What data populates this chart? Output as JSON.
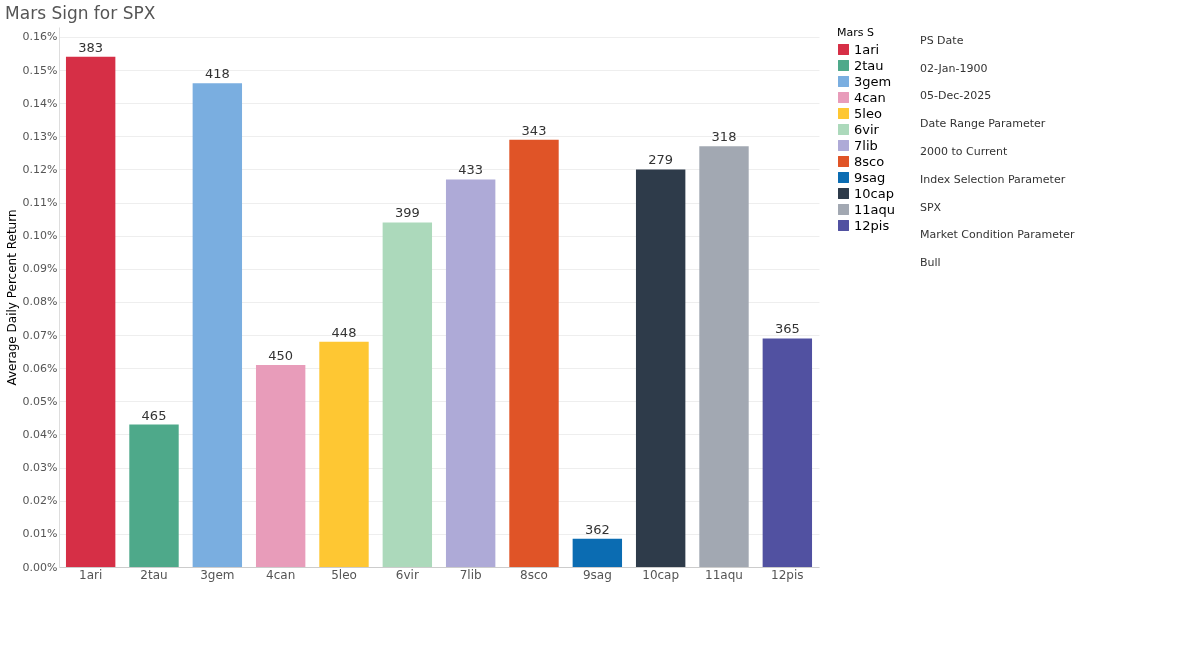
{
  "chart_data": {
    "type": "bar",
    "title": "Mars Sign for SPX",
    "ylabel": "Average Daily Percent Return",
    "legend_title": "Mars S",
    "legend": "right",
    "categories": [
      "1ari",
      "2tau",
      "3gem",
      "4can",
      "5leo",
      "6vir",
      "7lib",
      "8sco",
      "9sag",
      "10cap",
      "11aqu",
      "12pis"
    ],
    "series": [
      {
        "name": "1ari",
        "color": "#d62f46",
        "values": [
          0.154,
          null,
          null,
          null,
          null,
          null,
          null,
          null,
          null,
          null,
          null,
          null
        ]
      },
      {
        "name": "2tau",
        "color": "#4ea98a",
        "values": [
          null,
          0.043,
          null,
          null,
          null,
          null,
          null,
          null,
          null,
          null,
          null,
          null
        ]
      },
      {
        "name": "3gem",
        "color": "#7aaee0",
        "values": [
          null,
          null,
          0.146,
          null,
          null,
          null,
          null,
          null,
          null,
          null,
          null,
          null
        ]
      },
      {
        "name": "4can",
        "color": "#e89cba",
        "values": [
          null,
          null,
          null,
          0.061,
          null,
          null,
          null,
          null,
          null,
          null,
          null,
          null
        ]
      },
      {
        "name": "5leo",
        "color": "#fec733",
        "values": [
          null,
          null,
          null,
          null,
          0.068,
          null,
          null,
          null,
          null,
          null,
          null,
          null
        ]
      },
      {
        "name": "6vir",
        "color": "#acd9bb",
        "values": [
          null,
          null,
          null,
          null,
          null,
          0.104,
          null,
          null,
          null,
          null,
          null,
          null
        ]
      },
      {
        "name": "7lib",
        "color": "#aeaad7",
        "values": [
          null,
          null,
          null,
          null,
          null,
          null,
          0.117,
          null,
          null,
          null,
          null,
          null
        ]
      },
      {
        "name": "8sco",
        "color": "#e05427",
        "values": [
          null,
          null,
          null,
          null,
          null,
          null,
          null,
          0.129,
          null,
          null,
          null,
          null
        ]
      },
      {
        "name": "9sag",
        "color": "#0b6cb2",
        "values": [
          null,
          null,
          null,
          null,
          null,
          null,
          null,
          null,
          0.0085,
          null,
          null,
          null
        ]
      },
      {
        "name": "10cap",
        "color": "#2e3b4a",
        "values": [
          null,
          null,
          null,
          null,
          null,
          null,
          null,
          null,
          null,
          0.12,
          null,
          null
        ]
      },
      {
        "name": "11aqu",
        "color": "#a2a8b2",
        "values": [
          null,
          null,
          null,
          null,
          null,
          null,
          null,
          null,
          null,
          null,
          0.127,
          null
        ]
      },
      {
        "name": "12pis",
        "color": "#5151a1",
        "values": [
          null,
          null,
          null,
          null,
          null,
          null,
          null,
          null,
          null,
          null,
          null,
          0.069
        ]
      }
    ],
    "ylim": [
      0,
      0.163
    ],
    "yticks": [
      {
        "value": 0,
        "label": "0.00%"
      },
      {
        "value": 0.01,
        "label": "0.01%"
      },
      {
        "value": 0.02,
        "label": "0.02%"
      },
      {
        "value": 0.03,
        "label": "0.03%"
      },
      {
        "value": 0.04,
        "label": "0.04%"
      },
      {
        "value": 0.05,
        "label": "0.05%"
      },
      {
        "value": 0.06,
        "label": "0.06%"
      },
      {
        "value": 0.07,
        "label": "0.07%"
      },
      {
        "value": 0.08,
        "label": "0.08%"
      },
      {
        "value": 0.09,
        "label": "0.09%"
      },
      {
        "value": 0.1,
        "label": "0.10%"
      },
      {
        "value": 0.11,
        "label": "0.11%"
      },
      {
        "value": 0.12,
        "label": "0.12%"
      },
      {
        "value": 0.13,
        "label": "0.13%"
      },
      {
        "value": 0.14,
        "label": "0.14%"
      },
      {
        "value": 0.15,
        "label": "0.15%"
      },
      {
        "value": 0.16,
        "label": "0.16%"
      }
    ],
    "grid": "y",
    "annotations": [
      {
        "text": "383",
        "x": "1ari",
        "y": 0.154
      },
      {
        "text": "465",
        "x": "2tau",
        "y": 0.043
      },
      {
        "text": "418",
        "x": "3gem",
        "y": 0.146
      },
      {
        "text": "450",
        "x": "4can",
        "y": 0.061
      },
      {
        "text": "448",
        "x": "5leo",
        "y": 0.068
      },
      {
        "text": "399",
        "x": "6vir",
        "y": 0.104
      },
      {
        "text": "433",
        "x": "7lib",
        "y": 0.117
      },
      {
        "text": "343",
        "x": "8sco",
        "y": 0.129
      },
      {
        "text": "362",
        "x": "9sag",
        "y": 0.0085
      },
      {
        "text": "279",
        "x": "10cap",
        "y": 0.12
      },
      {
        "text": "318",
        "x": "11aqu",
        "y": 0.127
      },
      {
        "text": "365",
        "x": "12pis",
        "y": 0.069
      },
      "PS Date",
      "02-Jan-1900",
      "05-Dec-2025",
      "Date Range Parameter",
      "2000 to Current",
      "Index Selection Parameter",
      "SPX",
      "Market Condition Parameter",
      "Bull"
    ]
  }
}
